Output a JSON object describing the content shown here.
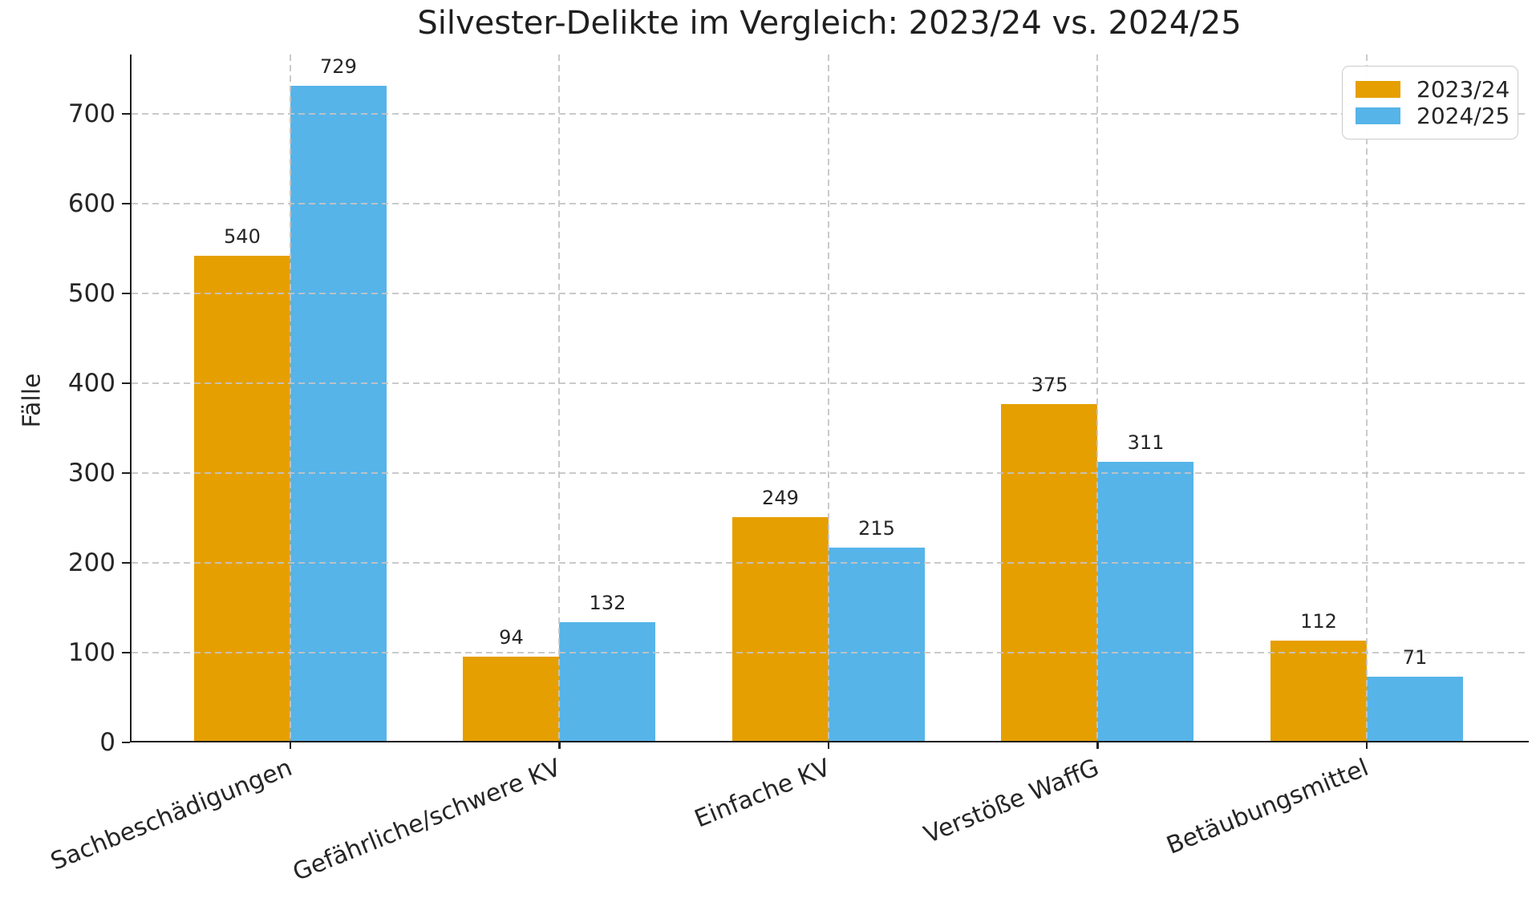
{
  "title": "Silvester-Delikte im Vergleich: 2023/24 vs. 2024/25",
  "chart_data": {
    "type": "bar",
    "categories": [
      "Sachbeschädigungen",
      "Gefährliche/schwere KV",
      "Einfache KV",
      "Verstöße WaffG",
      "Betäubungsmittel"
    ],
    "series": [
      {
        "name": "2023/24",
        "color": "#E69F00",
        "values": [
          540,
          94,
          249,
          375,
          112
        ]
      },
      {
        "name": "2024/25",
        "color": "#56B4E9",
        "values": [
          729,
          132,
          215,
          311,
          71
        ]
      }
    ],
    "xlabel": "",
    "ylabel": "Fälle",
    "yticks": [
      0,
      100,
      200,
      300,
      400,
      500,
      600,
      700
    ],
    "ylim": [
      0,
      766
    ],
    "grid": "dashed-both-axes",
    "grid_color": "#c4c4c4",
    "legend_position": "upper-right",
    "bar_value_labels": true,
    "tick_label_rotation_deg": 22
  }
}
